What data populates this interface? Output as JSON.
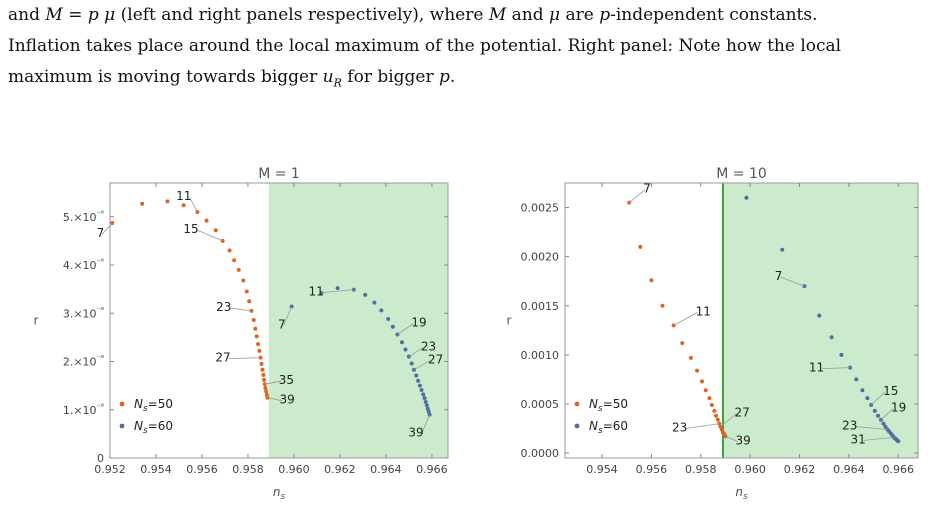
{
  "caption": {
    "line1_a": "and ",
    "line1_M": "M",
    "line1_b": " = ",
    "line1_p": "p",
    "line1_mu": "μ",
    "line1_c": " (left and right panels respectively), where ",
    "line1_M2": "M",
    "line1_d": " and ",
    "line1_mu2": "μ",
    "line1_e": " are ",
    "line1_p2": "p",
    "line1_f": "-independent constants.",
    "line2": "Inflation takes place around the local maximum of the potential. Right panel: Note how the local",
    "line3_a": "maximum is moving towards bigger ",
    "line3_u": "u",
    "line3_R": "R",
    "line3_b": " for bigger ",
    "line3_p": "p",
    "line3_c": "."
  },
  "chart_data": [
    {
      "type": "scatter",
      "title": "M = 1",
      "xlabel": "n_s",
      "ylabel": "r",
      "xlim": [
        0.952,
        0.9667
      ],
      "ylim": [
        0,
        5.7e-06
      ],
      "xticks": [
        0.952,
        0.954,
        0.956,
        0.958,
        0.96,
        0.962,
        0.964,
        0.966
      ],
      "xtick_labels": [
        "0.952",
        "0.954",
        "0.956",
        "0.958",
        "0.960",
        "0.962",
        "0.964",
        "0.966"
      ],
      "yticks": [
        0,
        1e-06,
        2e-06,
        3e-06,
        4e-06,
        5e-06
      ],
      "ytick_labels": [
        "0",
        "1.×10⁻⁶",
        "2.×10⁻⁶",
        "3.×10⁻⁶",
        "4.×10⁻⁶",
        "5.×10⁻⁶"
      ],
      "shaded_region": {
        "x_from": 0.9589,
        "color": "#ccebcc"
      },
      "legend": {
        "position": "bottom-left",
        "entries": [
          "N_s=50",
          "N_s=60"
        ]
      },
      "series": [
        {
          "name": "N_s=50",
          "color": "#e1631f",
          "x": [
            0.9521,
            0.9534,
            0.9545,
            0.9552,
            0.9558,
            0.9562,
            0.9566,
            0.9569,
            0.9572,
            0.9574,
            0.9576,
            0.9578,
            0.95795,
            0.95805,
            0.95815,
            0.95825,
            0.95832,
            0.95838,
            0.95844,
            0.9585,
            0.95855,
            0.95859,
            0.95863,
            0.95867,
            0.9587,
            0.95873,
            0.95876,
            0.95879,
            0.95882,
            0.95885
          ],
          "y": [
            4.87e-06,
            5.27e-06,
            5.32e-06,
            5.24e-06,
            5.1e-06,
            4.92e-06,
            4.72e-06,
            4.5e-06,
            4.3e-06,
            4.1e-06,
            3.9e-06,
            3.68e-06,
            3.45e-06,
            3.25e-06,
            3.05e-06,
            2.86e-06,
            2.68e-06,
            2.52e-06,
            2.36e-06,
            2.22e-06,
            2.08e-06,
            1.95e-06,
            1.83e-06,
            1.72e-06,
            1.62e-06,
            1.53e-06,
            1.45e-06,
            1.38e-06,
            1.31e-06,
            1.25e-06
          ]
        },
        {
          "name": "N_s=60",
          "color": "#4e6fa3",
          "x": [
            0.9599,
            0.9612,
            0.9619,
            0.9626,
            0.9631,
            0.9635,
            0.9638,
            0.9641,
            0.9643,
            0.9645,
            0.9647,
            0.96485,
            0.965,
            0.96512,
            0.96522,
            0.96532,
            0.9654,
            0.96548,
            0.96555,
            0.96562,
            0.96568,
            0.96573,
            0.96578,
            0.96582,
            0.96586,
            0.9659
          ],
          "y": [
            3.14e-06,
            3.42e-06,
            3.52e-06,
            3.49e-06,
            3.38e-06,
            3.22e-06,
            3.06e-06,
            2.88e-06,
            2.72e-06,
            2.56e-06,
            2.4e-06,
            2.25e-06,
            2.1e-06,
            1.96e-06,
            1.83e-06,
            1.71e-06,
            1.6e-06,
            1.5e-06,
            1.41e-06,
            1.32e-06,
            1.24e-06,
            1.16e-06,
            1.09e-06,
            1.02e-06,
            9.6e-07,
            9e-07
          ]
        }
      ],
      "annotations": [
        {
          "text": "7",
          "x": 0.9521,
          "y": 4.87e-06
        },
        {
          "text": "11",
          "x": 0.9558,
          "y": 5.1e-06
        },
        {
          "text": "15",
          "x": 0.9569,
          "y": 4.5e-06
        },
        {
          "text": "23",
          "x": 0.95815,
          "y": 3.05e-06
        },
        {
          "text": "27",
          "x": 0.95855,
          "y": 2.08e-06
        },
        {
          "text": "35",
          "x": 0.95873,
          "y": 1.53e-06
        },
        {
          "text": "39",
          "x": 0.95885,
          "y": 1.25e-06
        },
        {
          "text": "7",
          "x": 0.9599,
          "y": 3.14e-06
        },
        {
          "text": "11",
          "x": 0.9626,
          "y": 3.49e-06
        },
        {
          "text": "19",
          "x": 0.9645,
          "y": 2.56e-06
        },
        {
          "text": "23",
          "x": 0.965,
          "y": 2.1e-06
        },
        {
          "text": "27",
          "x": 0.96522,
          "y": 1.83e-06
        },
        {
          "text": "39",
          "x": 0.9659,
          "y": 9e-07
        }
      ]
    },
    {
      "type": "scatter",
      "title": "M = 10",
      "xlabel": "n_s",
      "ylabel": "r",
      "xlim": [
        0.9525,
        0.9668
      ],
      "ylim": [
        -5e-05,
        0.00275
      ],
      "xticks": [
        0.954,
        0.956,
        0.958,
        0.96,
        0.962,
        0.964,
        0.966
      ],
      "xtick_labels": [
        "0.954",
        "0.956",
        "0.958",
        "0.960",
        "0.962",
        "0.964",
        "0.966"
      ],
      "yticks": [
        0,
        0.0005,
        0.001,
        0.0015,
        0.002,
        0.0025
      ],
      "ytick_labels": [
        "0.0000",
        "0.0005",
        "0.0010",
        "0.0015",
        "0.0020",
        "0.0025"
      ],
      "shaded_region": {
        "x_from": 0.9589,
        "color": "#ccebcc"
      },
      "vertical_line": {
        "x": 0.9589,
        "color": "#3aa33a"
      },
      "legend": {
        "position": "bottom-left",
        "entries": [
          "N_s=50",
          "N_s=60"
        ]
      },
      "series": [
        {
          "name": "N_s=50",
          "color": "#e1631f",
          "x": [
            0.9551,
            0.95555,
            0.956,
            0.95645,
            0.9569,
            0.95725,
            0.9576,
            0.95785,
            0.95805,
            0.9582,
            0.95835,
            0.95845,
            0.95855,
            0.95862,
            0.95869,
            0.95875,
            0.9588,
            0.95885,
            0.9589,
            0.95895,
            0.959
          ],
          "y": [
            0.00255,
            0.0021,
            0.00176,
            0.0015,
            0.0013,
            0.00112,
            0.00097,
            0.00084,
            0.00073,
            0.00064,
            0.00056,
            0.00049,
            0.00043,
            0.00038,
            0.00034,
            0.0003,
            0.00027,
            0.00024,
            0.00021,
            0.00019,
            0.00017
          ]
        },
        {
          "name": "N_s=60",
          "color": "#4e6fa3",
          "x": [
            0.95985,
            0.9613,
            0.9622,
            0.9628,
            0.9633,
            0.9637,
            0.96405,
            0.9643,
            0.96455,
            0.96475,
            0.9649,
            0.96505,
            0.96518,
            0.9653,
            0.9654,
            0.96548,
            0.96556,
            0.96563,
            0.9657,
            0.96576,
            0.96582,
            0.96587,
            0.96592,
            0.96596,
            0.966
          ],
          "y": [
            0.0026,
            0.00207,
            0.0017,
            0.0014,
            0.00118,
            0.001,
            0.00087,
            0.00075,
            0.00064,
            0.00056,
            0.00049,
            0.00043,
            0.00038,
            0.00034,
            0.0003,
            0.00027,
            0.00024,
            0.00022,
            0.0002,
            0.00018,
            0.00016,
            0.00015,
            0.00014,
            0.00013,
            0.00012
          ]
        }
      ],
      "annotations": [
        {
          "text": "7",
          "x": 0.9551,
          "y": 0.00255
        },
        {
          "text": "11",
          "x": 0.9569,
          "y": 0.0013
        },
        {
          "text": "23",
          "x": 0.95875,
          "y": 0.0003
        },
        {
          "text": "27",
          "x": 0.9588,
          "y": 0.00027
        },
        {
          "text": "39",
          "x": 0.959,
          "y": 0.00017
        },
        {
          "text": "7",
          "x": 0.9622,
          "y": 0.0017
        },
        {
          "text": "11",
          "x": 0.96405,
          "y": 0.00087
        },
        {
          "text": "15",
          "x": 0.9649,
          "y": 0.00049
        },
        {
          "text": "19",
          "x": 0.9653,
          "y": 0.00034
        },
        {
          "text": "23",
          "x": 0.96556,
          "y": 0.00024
        },
        {
          "text": "31",
          "x": 0.96582,
          "y": 0.00016
        }
      ]
    }
  ]
}
